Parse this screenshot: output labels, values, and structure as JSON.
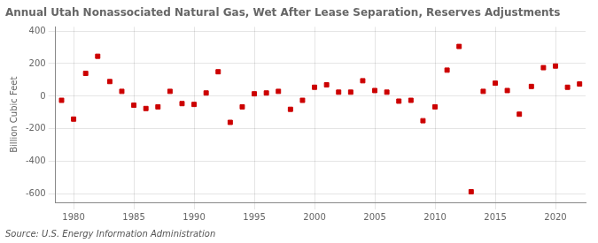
{
  "chart_data": {
    "type": "scatter",
    "title": "Annual Utah Nonassociated Natural Gas, Wet After Lease Separation, Reserves Adjustments",
    "ylabel": "Billion Cubic Feet",
    "annotations": [
      "Source: U.S. Energy Information Administration"
    ],
    "x": [
      1979,
      1980,
      1981,
      1982,
      1983,
      1984,
      1985,
      1986,
      1987,
      1988,
      1989,
      1990,
      1991,
      1992,
      1993,
      1994,
      1995,
      1996,
      1997,
      1998,
      1999,
      2000,
      2001,
      2002,
      2003,
      2004,
      2005,
      2006,
      2007,
      2008,
      2009,
      2010,
      2011,
      2012,
      2013,
      2014,
      2015,
      2016,
      2017,
      2018,
      2019,
      2020,
      2021,
      2022
    ],
    "values": [
      -25,
      -140,
      140,
      245,
      90,
      30,
      -55,
      -75,
      -65,
      30,
      -45,
      -50,
      20,
      150,
      -160,
      -65,
      15,
      20,
      30,
      -80,
      -25,
      55,
      70,
      25,
      25,
      95,
      35,
      25,
      -30,
      -25,
      -150,
      -65,
      160,
      305,
      -585,
      30,
      80,
      35,
      -110,
      60,
      175,
      185,
      55,
      75
    ],
    "color": "#cc0000",
    "marker": "square",
    "xlim": [
      1978.5,
      2022.5
    ],
    "xticks": [
      1980,
      1985,
      1990,
      1995,
      2000,
      2005,
      2010,
      2015,
      2020
    ],
    "ylim": [
      -650,
      425
    ],
    "yticks": [
      -600,
      -400,
      -200,
      0,
      200,
      400
    ],
    "grid": true
  }
}
